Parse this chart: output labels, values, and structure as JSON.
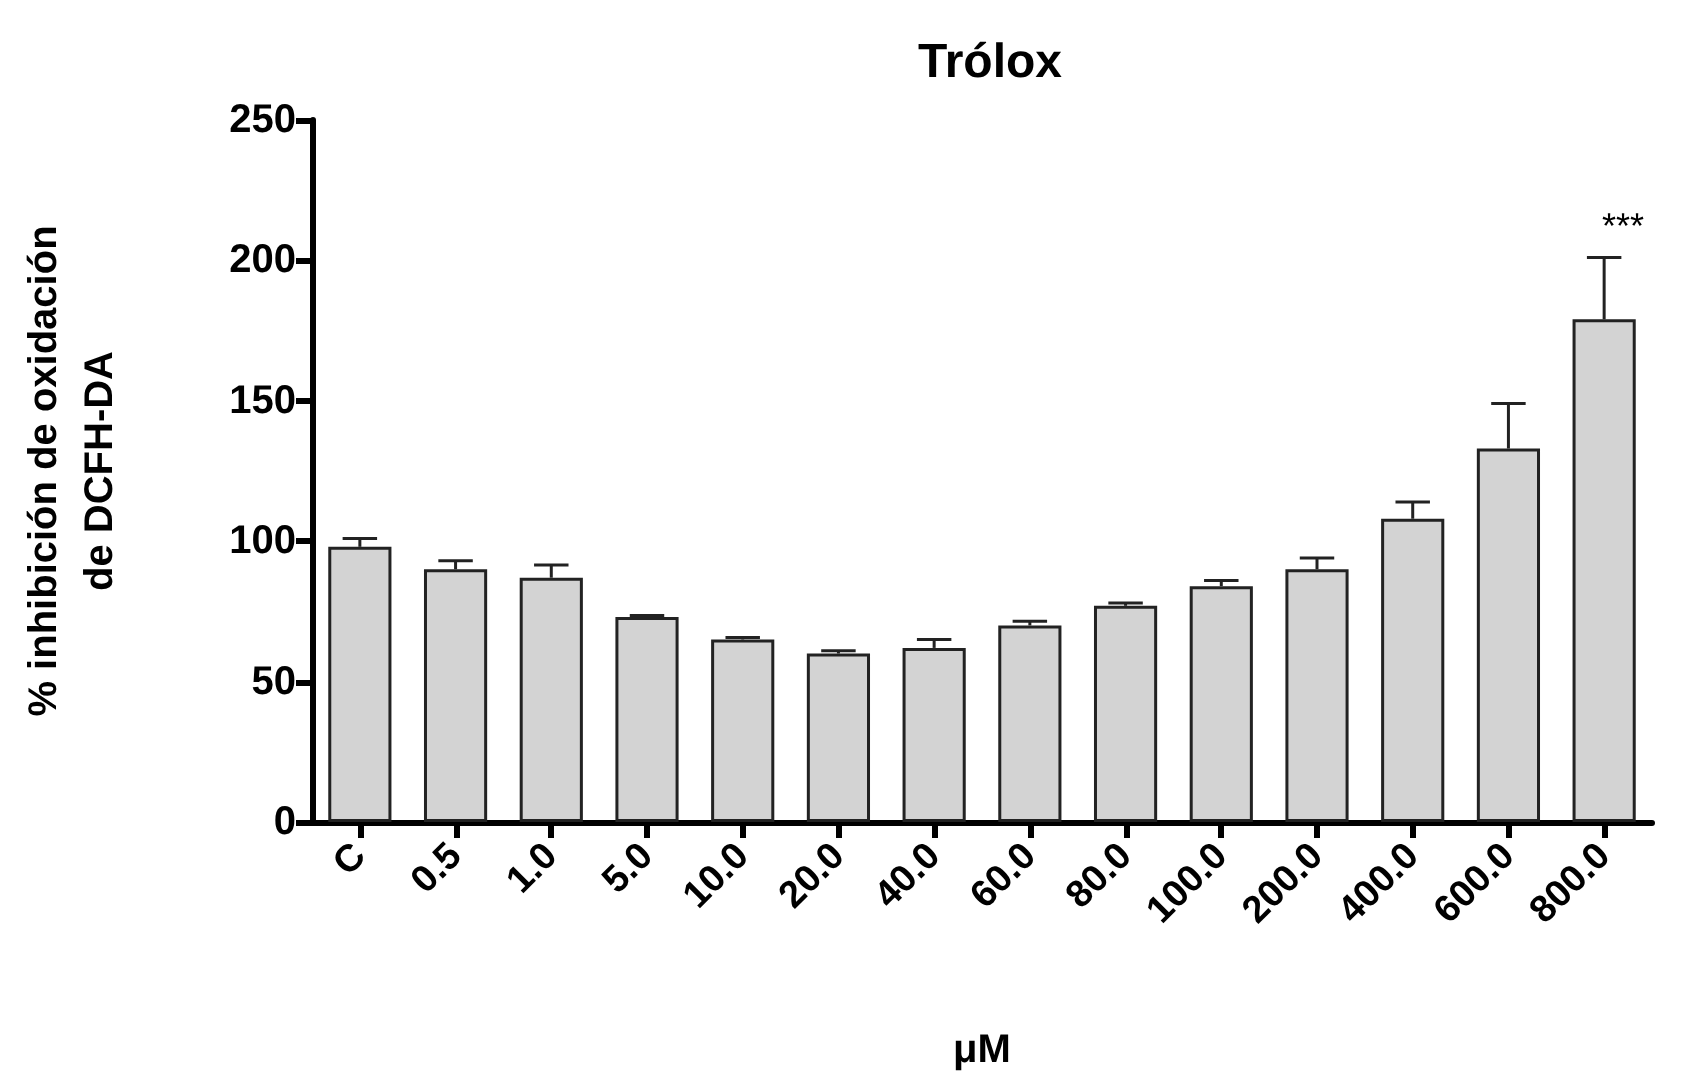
{
  "chart_data": {
    "type": "bar",
    "title": "Trólox",
    "xlabel": "μM",
    "ylabel": "% inhibición de oxidación\nde DCFH-DA",
    "categories": [
      "C",
      "0.5",
      "1.0",
      "5.0",
      "10.0",
      "20.0",
      "40.0",
      "60.0",
      "80.0",
      "100.0",
      "200.0",
      "400.0",
      "600.0",
      "800.0"
    ],
    "values": [
      98,
      90,
      87,
      73,
      65,
      60,
      62,
      70,
      77,
      84,
      90,
      108,
      133,
      179
    ],
    "errors": [
      3,
      3,
      4.5,
      0.5,
      0.7,
      1,
      3,
      1.5,
      1,
      2,
      4,
      6,
      16,
      22
    ],
    "color": "#d3d3d3",
    "ylim": [
      0,
      250
    ],
    "yticks": [
      0,
      50,
      100,
      150,
      200,
      250
    ],
    "grid": false,
    "annotations": [
      "***"
    ]
  }
}
